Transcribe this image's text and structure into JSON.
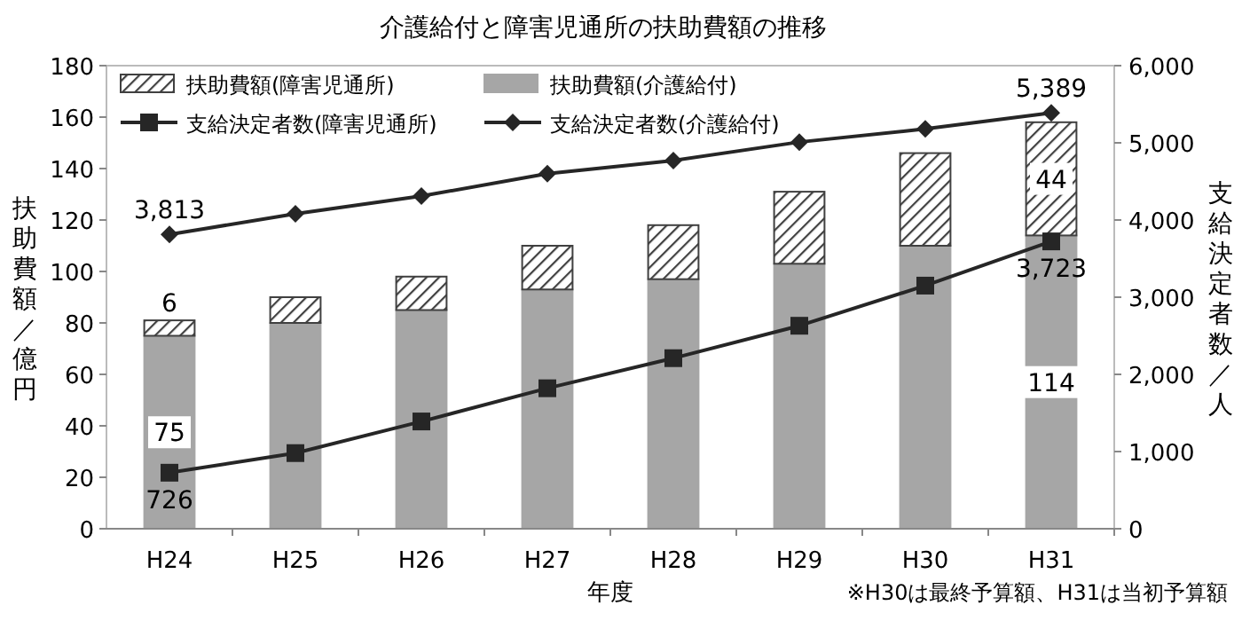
{
  "chart_data": {
    "type": "bar",
    "title": "介護給付と障害児通所の扶助費額の推移",
    "xlabel": "年度",
    "ylabel": "扶助費額／億円",
    "y2label": "支給決定者数／人",
    "categories": [
      "H24",
      "H25",
      "H26",
      "H27",
      "H28",
      "H29",
      "H30",
      "H31"
    ],
    "stacked": true,
    "legend": "top left",
    "grid": false,
    "ylim": [
      0,
      180
    ],
    "yticks": [
      0,
      20,
      40,
      60,
      80,
      100,
      120,
      140,
      160,
      180
    ],
    "y2lim": [
      0,
      6000
    ],
    "y2ticks": [
      {
        "value": 0,
        "label": "0"
      },
      {
        "value": 1000,
        "label": "1,000"
      },
      {
        "value": 2000,
        "label": "2,000"
      },
      {
        "value": 3000,
        "label": "3,000"
      },
      {
        "value": 4000,
        "label": "4,000"
      },
      {
        "value": 5000,
        "label": "5,000"
      },
      {
        "value": 6000,
        "label": "6,000"
      }
    ],
    "series": [
      {
        "name": "扶助費額(介護給付)",
        "color": "#a6a6a6",
        "values": [
          75,
          80,
          85,
          93,
          97,
          103,
          110,
          114
        ],
        "value_labels": [
          "75",
          null,
          null,
          null,
          null,
          null,
          null,
          "114"
        ]
      },
      {
        "name": "扶助費額(障害児通所)",
        "color": "#404040",
        "values": [
          6,
          10,
          13,
          17,
          21,
          28,
          36,
          44
        ],
        "value_labels": [
          "6",
          null,
          null,
          null,
          null,
          null,
          null,
          "44"
        ]
      },
      {
        "name": "支給決定者数(障害児通所)",
        "type": "line",
        "axis": "y2",
        "color": "#262626",
        "marker": "square",
        "values": [
          726,
          980,
          1390,
          1820,
          2210,
          2630,
          3150,
          3723
        ],
        "value_labels": [
          "726",
          null,
          null,
          null,
          null,
          null,
          null,
          "3,723"
        ]
      },
      {
        "name": "支給決定者数(介護給付)",
        "type": "line",
        "axis": "y2",
        "color": "#262626",
        "marker": "diamond",
        "values": [
          3813,
          4080,
          4310,
          4600,
          4770,
          5010,
          5180,
          5389
        ],
        "value_labels": [
          "3,813",
          null,
          null,
          null,
          null,
          null,
          null,
          "5,389"
        ]
      }
    ],
    "annotations": [
      "※H30は最終予算額、H31は当初予算額"
    ]
  }
}
